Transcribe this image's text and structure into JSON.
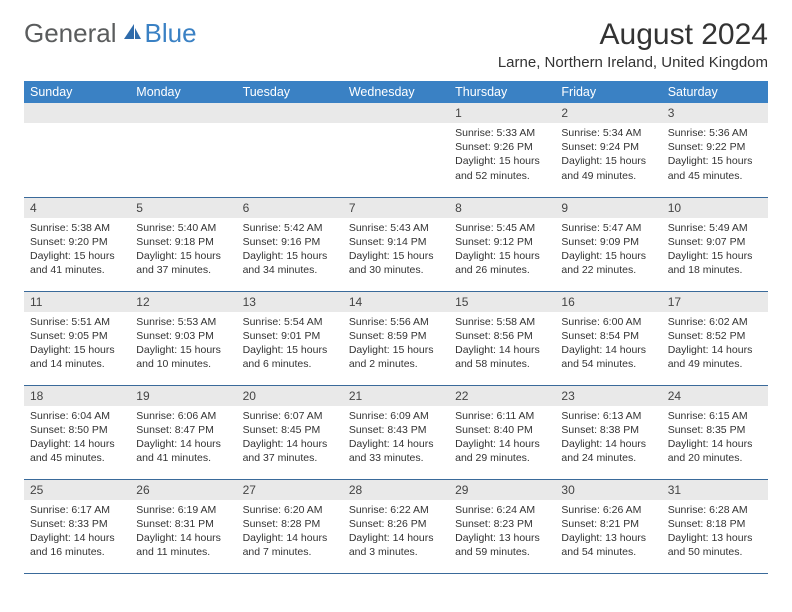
{
  "logo": {
    "text1": "General",
    "text2": "Blue"
  },
  "header": {
    "month_title": "August 2024",
    "location": "Larne, Northern Ireland, United Kingdom"
  },
  "colors": {
    "header_bg": "#3a81c4",
    "header_fg": "#ffffff",
    "daynum_bg": "#e9e9e9",
    "row_border": "#3a6a9a",
    "logo_gray": "#5a5c5d",
    "logo_blue": "#3a81c4"
  },
  "day_names": [
    "Sunday",
    "Monday",
    "Tuesday",
    "Wednesday",
    "Thursday",
    "Friday",
    "Saturday"
  ],
  "weeks": [
    [
      {
        "empty": true
      },
      {
        "empty": true
      },
      {
        "empty": true
      },
      {
        "empty": true
      },
      {
        "num": "1",
        "sunrise": "Sunrise: 5:33 AM",
        "sunset": "Sunset: 9:26 PM",
        "daylight": "Daylight: 15 hours and 52 minutes."
      },
      {
        "num": "2",
        "sunrise": "Sunrise: 5:34 AM",
        "sunset": "Sunset: 9:24 PM",
        "daylight": "Daylight: 15 hours and 49 minutes."
      },
      {
        "num": "3",
        "sunrise": "Sunrise: 5:36 AM",
        "sunset": "Sunset: 9:22 PM",
        "daylight": "Daylight: 15 hours and 45 minutes."
      }
    ],
    [
      {
        "num": "4",
        "sunrise": "Sunrise: 5:38 AM",
        "sunset": "Sunset: 9:20 PM",
        "daylight": "Daylight: 15 hours and 41 minutes."
      },
      {
        "num": "5",
        "sunrise": "Sunrise: 5:40 AM",
        "sunset": "Sunset: 9:18 PM",
        "daylight": "Daylight: 15 hours and 37 minutes."
      },
      {
        "num": "6",
        "sunrise": "Sunrise: 5:42 AM",
        "sunset": "Sunset: 9:16 PM",
        "daylight": "Daylight: 15 hours and 34 minutes."
      },
      {
        "num": "7",
        "sunrise": "Sunrise: 5:43 AM",
        "sunset": "Sunset: 9:14 PM",
        "daylight": "Daylight: 15 hours and 30 minutes."
      },
      {
        "num": "8",
        "sunrise": "Sunrise: 5:45 AM",
        "sunset": "Sunset: 9:12 PM",
        "daylight": "Daylight: 15 hours and 26 minutes."
      },
      {
        "num": "9",
        "sunrise": "Sunrise: 5:47 AM",
        "sunset": "Sunset: 9:09 PM",
        "daylight": "Daylight: 15 hours and 22 minutes."
      },
      {
        "num": "10",
        "sunrise": "Sunrise: 5:49 AM",
        "sunset": "Sunset: 9:07 PM",
        "daylight": "Daylight: 15 hours and 18 minutes."
      }
    ],
    [
      {
        "num": "11",
        "sunrise": "Sunrise: 5:51 AM",
        "sunset": "Sunset: 9:05 PM",
        "daylight": "Daylight: 15 hours and 14 minutes."
      },
      {
        "num": "12",
        "sunrise": "Sunrise: 5:53 AM",
        "sunset": "Sunset: 9:03 PM",
        "daylight": "Daylight: 15 hours and 10 minutes."
      },
      {
        "num": "13",
        "sunrise": "Sunrise: 5:54 AM",
        "sunset": "Sunset: 9:01 PM",
        "daylight": "Daylight: 15 hours and 6 minutes."
      },
      {
        "num": "14",
        "sunrise": "Sunrise: 5:56 AM",
        "sunset": "Sunset: 8:59 PM",
        "daylight": "Daylight: 15 hours and 2 minutes."
      },
      {
        "num": "15",
        "sunrise": "Sunrise: 5:58 AM",
        "sunset": "Sunset: 8:56 PM",
        "daylight": "Daylight: 14 hours and 58 minutes."
      },
      {
        "num": "16",
        "sunrise": "Sunrise: 6:00 AM",
        "sunset": "Sunset: 8:54 PM",
        "daylight": "Daylight: 14 hours and 54 minutes."
      },
      {
        "num": "17",
        "sunrise": "Sunrise: 6:02 AM",
        "sunset": "Sunset: 8:52 PM",
        "daylight": "Daylight: 14 hours and 49 minutes."
      }
    ],
    [
      {
        "num": "18",
        "sunrise": "Sunrise: 6:04 AM",
        "sunset": "Sunset: 8:50 PM",
        "daylight": "Daylight: 14 hours and 45 minutes."
      },
      {
        "num": "19",
        "sunrise": "Sunrise: 6:06 AM",
        "sunset": "Sunset: 8:47 PM",
        "daylight": "Daylight: 14 hours and 41 minutes."
      },
      {
        "num": "20",
        "sunrise": "Sunrise: 6:07 AM",
        "sunset": "Sunset: 8:45 PM",
        "daylight": "Daylight: 14 hours and 37 minutes."
      },
      {
        "num": "21",
        "sunrise": "Sunrise: 6:09 AM",
        "sunset": "Sunset: 8:43 PM",
        "daylight": "Daylight: 14 hours and 33 minutes."
      },
      {
        "num": "22",
        "sunrise": "Sunrise: 6:11 AM",
        "sunset": "Sunset: 8:40 PM",
        "daylight": "Daylight: 14 hours and 29 minutes."
      },
      {
        "num": "23",
        "sunrise": "Sunrise: 6:13 AM",
        "sunset": "Sunset: 8:38 PM",
        "daylight": "Daylight: 14 hours and 24 minutes."
      },
      {
        "num": "24",
        "sunrise": "Sunrise: 6:15 AM",
        "sunset": "Sunset: 8:35 PM",
        "daylight": "Daylight: 14 hours and 20 minutes."
      }
    ],
    [
      {
        "num": "25",
        "sunrise": "Sunrise: 6:17 AM",
        "sunset": "Sunset: 8:33 PM",
        "daylight": "Daylight: 14 hours and 16 minutes."
      },
      {
        "num": "26",
        "sunrise": "Sunrise: 6:19 AM",
        "sunset": "Sunset: 8:31 PM",
        "daylight": "Daylight: 14 hours and 11 minutes."
      },
      {
        "num": "27",
        "sunrise": "Sunrise: 6:20 AM",
        "sunset": "Sunset: 8:28 PM",
        "daylight": "Daylight: 14 hours and 7 minutes."
      },
      {
        "num": "28",
        "sunrise": "Sunrise: 6:22 AM",
        "sunset": "Sunset: 8:26 PM",
        "daylight": "Daylight: 14 hours and 3 minutes."
      },
      {
        "num": "29",
        "sunrise": "Sunrise: 6:24 AM",
        "sunset": "Sunset: 8:23 PM",
        "daylight": "Daylight: 13 hours and 59 minutes."
      },
      {
        "num": "30",
        "sunrise": "Sunrise: 6:26 AM",
        "sunset": "Sunset: 8:21 PM",
        "daylight": "Daylight: 13 hours and 54 minutes."
      },
      {
        "num": "31",
        "sunrise": "Sunrise: 6:28 AM",
        "sunset": "Sunset: 8:18 PM",
        "daylight": "Daylight: 13 hours and 50 minutes."
      }
    ]
  ]
}
